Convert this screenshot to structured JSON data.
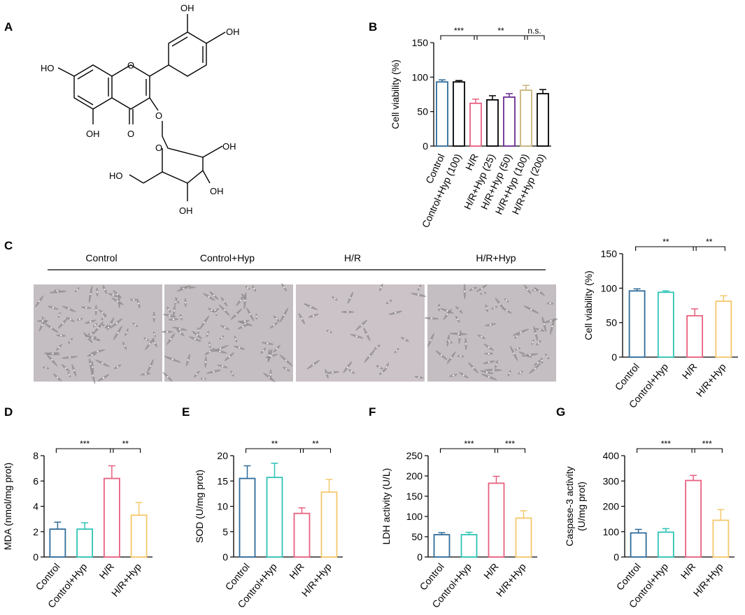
{
  "panels": [
    "A",
    "B",
    "C",
    "D",
    "E",
    "F",
    "G"
  ],
  "structure": {
    "labels": [
      "OH",
      "OH",
      "HO",
      "O",
      "O",
      "OH",
      "O",
      "O",
      "OH",
      "HO",
      "OH",
      "OH"
    ]
  },
  "micrographs": {
    "labels": [
      "Control",
      "Control+Hyp",
      "H/R",
      "H/R+Hyp"
    ]
  },
  "colors": {
    "Control": "#2f6b9a",
    "Control+Hyp": "#2ec4b6",
    "H/R": "#e8607f",
    "H/R+Hyp": "#f5c86b",
    "H/R+Hyp (50)": "#6a2c91",
    "H/R+Hyp (100)": "#c9b27c",
    "H/R+Hyp (200)": "#000000"
  },
  "chart_data": [
    {
      "id": "B",
      "type": "bar",
      "ylabel": "Cell viability (%)",
      "ylim": [
        0,
        150
      ],
      "yticks": [
        0,
        50,
        100,
        150
      ],
      "categories": [
        "Control",
        "Control+Hyp (100)",
        "H/R",
        "H/R+Hyp (25)",
        "H/R+Hyp (50)",
        "H/R+Hyp (100)",
        "H/R+Hyp (200)"
      ],
      "values": [
        93,
        93,
        62,
        67,
        71,
        81,
        76
      ],
      "errors": [
        3,
        2,
        6,
        6,
        5,
        7,
        6
      ],
      "significance": [
        {
          "from": 0,
          "to": 2,
          "label": "***"
        },
        {
          "from": 2,
          "to": 5,
          "label": "**"
        },
        {
          "from": 5,
          "to": 6,
          "label": "n.s."
        }
      ]
    },
    {
      "id": "C",
      "type": "bar",
      "ylabel": "Cell viability (%)",
      "ylim": [
        0,
        150
      ],
      "yticks": [
        0,
        50,
        100,
        150
      ],
      "categories": [
        "Control",
        "Control+Hyp",
        "H/R",
        "H/R+Hyp"
      ],
      "values": [
        96,
        94,
        60,
        81
      ],
      "errors": [
        3,
        2,
        10,
        8
      ],
      "significance": [
        {
          "from": 0,
          "to": 2,
          "label": "**"
        },
        {
          "from": 2,
          "to": 3,
          "label": "**"
        }
      ]
    },
    {
      "id": "D",
      "type": "bar",
      "ylabel": "MDA (nmol/mg prot)",
      "ylim": [
        0,
        8
      ],
      "yticks": [
        0,
        2,
        4,
        6,
        8
      ],
      "categories": [
        "Control",
        "Control+Hyp",
        "H/R",
        "H/R+Hyp"
      ],
      "values": [
        2.2,
        2.2,
        6.2,
        3.3
      ],
      "errors": [
        0.55,
        0.5,
        1.0,
        1.0
      ],
      "significance": [
        {
          "from": 0,
          "to": 2,
          "label": "***"
        },
        {
          "from": 2,
          "to": 3,
          "label": "**"
        }
      ]
    },
    {
      "id": "E",
      "type": "bar",
      "ylabel": "SOD (U/mg prot)",
      "ylim": [
        0,
        20
      ],
      "yticks": [
        0,
        5,
        10,
        15,
        20
      ],
      "categories": [
        "Control",
        "Control+Hyp",
        "H/R",
        "H/R+Hyp"
      ],
      "values": [
        15.5,
        15.7,
        8.6,
        12.8
      ],
      "errors": [
        2.5,
        2.8,
        1.1,
        2.5
      ],
      "significance": [
        {
          "from": 0,
          "to": 2,
          "label": "**"
        },
        {
          "from": 2,
          "to": 3,
          "label": "**"
        }
      ]
    },
    {
      "id": "F",
      "type": "bar",
      "ylabel": "LDH activity (U/L)",
      "ylim": [
        0,
        250
      ],
      "yticks": [
        0,
        50,
        100,
        150,
        200,
        250
      ],
      "categories": [
        "Control",
        "Control+Hyp",
        "H/R",
        "H/R+Hyp"
      ],
      "values": [
        55,
        55,
        182,
        96
      ],
      "errors": [
        5,
        6,
        17,
        18
      ],
      "significance": [
        {
          "from": 0,
          "to": 2,
          "label": "***"
        },
        {
          "from": 2,
          "to": 3,
          "label": "***"
        }
      ]
    },
    {
      "id": "G",
      "type": "bar",
      "ylabel": "Caspase-3 activity",
      "ylabel2": "(U/mg prot)",
      "ylim": [
        0,
        400
      ],
      "yticks": [
        0,
        100,
        200,
        300,
        400
      ],
      "categories": [
        "Control",
        "Control+Hyp",
        "H/R",
        "H/R+Hyp"
      ],
      "values": [
        95,
        98,
        302,
        145
      ],
      "errors": [
        14,
        14,
        20,
        42
      ],
      "significance": [
        {
          "from": 0,
          "to": 2,
          "label": "***"
        },
        {
          "from": 2,
          "to": 3,
          "label": "***"
        }
      ]
    }
  ]
}
